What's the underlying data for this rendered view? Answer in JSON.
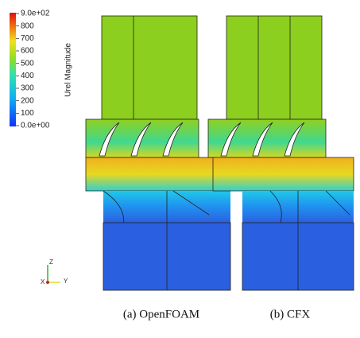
{
  "colorbar": {
    "title": "Urel Magnitude",
    "ticks": [
      "9.0e+02",
      "800",
      "700",
      "600",
      "500",
      "400",
      "300",
      "200",
      "100",
      "0.0e+00"
    ]
  },
  "axes": {
    "z": "Z",
    "x": "X",
    "y": "Y"
  },
  "captions": [
    "(a)  OpenFOAM",
    "(b)  CFX"
  ]
}
